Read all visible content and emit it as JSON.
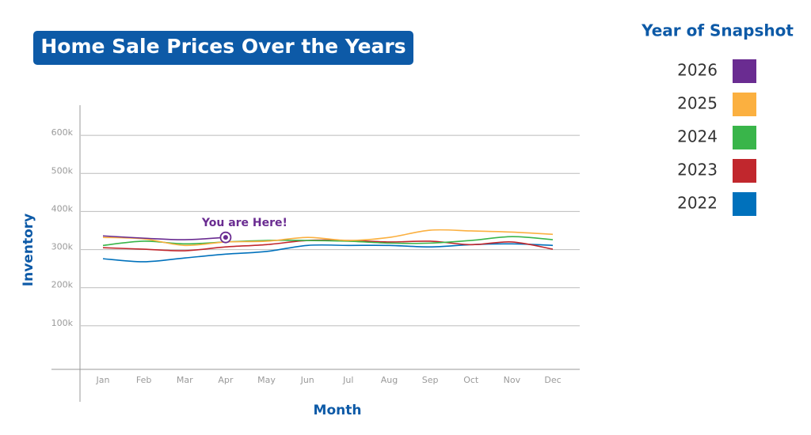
{
  "chart_data": {
    "type": "line",
    "title": "Home Sale Prices Over the Years",
    "x_label": "Month",
    "y_label": "Inventory",
    "legend_title": "Year of Snapshot",
    "annotation": "You are Here!",
    "categories": [
      "Jan",
      "Feb",
      "Mar",
      "Apr",
      "May",
      "Jun",
      "Jul",
      "Aug",
      "Sep",
      "Oct",
      "Nov",
      "Dec"
    ],
    "ylim": [
      0,
      700000
    ],
    "yticks": [
      {
        "value": 100000,
        "label": "100k"
      },
      {
        "value": 200000,
        "label": "200k"
      },
      {
        "value": 300000,
        "label": "300k"
      },
      {
        "value": 400000,
        "label": "400k"
      },
      {
        "value": 500000,
        "label": "500k"
      },
      {
        "value": 600000,
        "label": "600k"
      }
    ],
    "grid": true,
    "series": [
      {
        "name": "2026",
        "color": "#6a2c91",
        "values": [
          336000,
          330000,
          326000,
          332000,
          null,
          null,
          null,
          null,
          null,
          null,
          null,
          null
        ]
      },
      {
        "name": "2025",
        "color": "#fbb040",
        "values": [
          332000,
          328000,
          311000,
          320000,
          322000,
          332000,
          324000,
          332000,
          351000,
          349000,
          346000,
          340000
        ]
      },
      {
        "name": "2024",
        "color": "#39b54a",
        "values": [
          311000,
          322000,
          315000,
          320000,
          324000,
          324000,
          322000,
          317000,
          317000,
          324000,
          334000,
          326000
        ]
      },
      {
        "name": "2023",
        "color": "#c1272d",
        "values": [
          305000,
          301000,
          297000,
          307000,
          313000,
          324000,
          324000,
          320000,
          322000,
          313000,
          320000,
          301000
        ]
      },
      {
        "name": "2022",
        "color": "#0071bc",
        "values": [
          276000,
          268000,
          278000,
          288000,
          295000,
          311000,
          311000,
          311000,
          307000,
          313000,
          315000,
          311000
        ]
      }
    ]
  }
}
